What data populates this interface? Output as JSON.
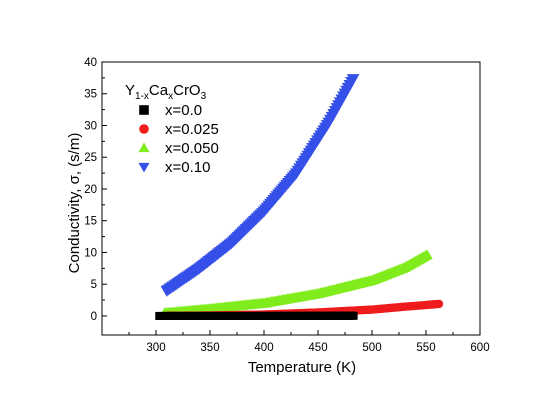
{
  "chart_data": {
    "type": "scatter",
    "xlabel": "Temperature (K)",
    "ylabel": "Conductivity, σ,  (s/m)",
    "xlim": [
      250,
      600
    ],
    "ylim": [
      -3,
      40
    ],
    "xticks": [
      300,
      350,
      400,
      450,
      500,
      550,
      600
    ],
    "yticks": [
      0,
      5,
      10,
      15,
      20,
      25,
      30,
      35,
      40
    ],
    "grid": false,
    "legend": {
      "placement": "top-left",
      "title": {
        "base": "Y",
        "sub1": "1-x",
        "mid": "Ca",
        "sub2": "x",
        "tail": "CrO",
        "sub3": "3"
      }
    },
    "series": [
      {
        "name": "x=0.0",
        "marker": "square",
        "color": "#000000",
        "x": [
          303,
          340,
          380,
          420,
          460,
          483
        ],
        "y": [
          0.0,
          0.0,
          0.0,
          0.01,
          0.02,
          0.03
        ]
      },
      {
        "name": "x=0.025",
        "marker": "circle",
        "color": "#ee1c1c",
        "x": [
          310,
          350,
          400,
          450,
          500,
          530,
          563
        ],
        "y": [
          0.03,
          0.08,
          0.22,
          0.55,
          1.0,
          1.45,
          1.9
        ]
      },
      {
        "name": "x=0.050",
        "marker": "triangle-up",
        "color": "#80ec1c",
        "x": [
          308,
          350,
          400,
          450,
          500,
          530,
          552
        ],
        "y": [
          0.45,
          1.1,
          2.0,
          3.5,
          5.6,
          7.6,
          9.7
        ]
      },
      {
        "name": "x=0.10",
        "marker": "triangle-down",
        "color": "#3550e8",
        "x": [
          310,
          340,
          370,
          400,
          430,
          460,
          483
        ],
        "y": [
          4.0,
          7.5,
          11.5,
          16.5,
          22.5,
          30.5,
          37.5
        ]
      }
    ]
  }
}
